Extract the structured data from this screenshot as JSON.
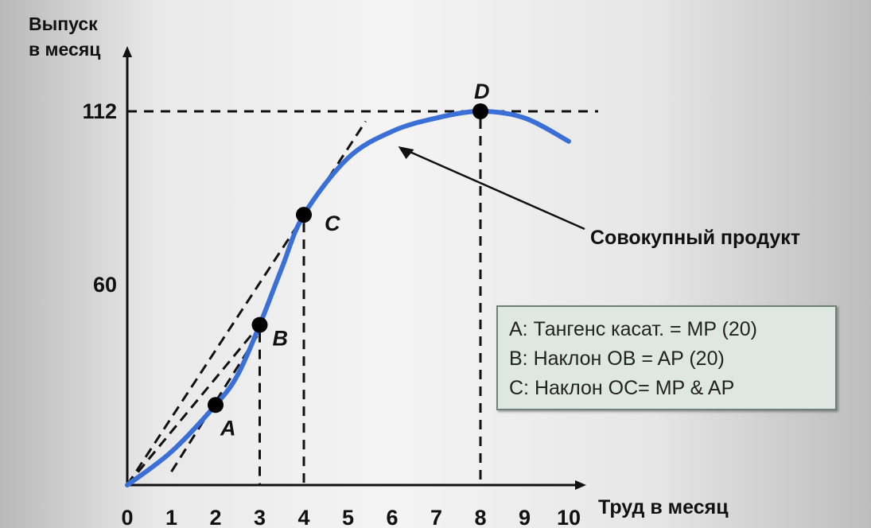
{
  "chart_data": {
    "type": "line",
    "ylabel_line1": "Выпуск",
    "ylabel_line2": "в месяц",
    "xlabel": "Труд в месяц",
    "x_ticks": [
      "0",
      "1",
      "2",
      "3",
      "4",
      "5",
      "6",
      "7",
      "8",
      "9",
      "10"
    ],
    "y_ticks": [
      {
        "value": 60,
        "label": "60"
      },
      {
        "value": 112,
        "label": "112"
      }
    ],
    "xlim": [
      0,
      10
    ],
    "ylim": [
      0,
      125
    ],
    "series": [
      {
        "color": "#3a6fd8",
        "x": [
          0,
          1,
          2,
          2.5,
          3,
          3.5,
          4,
          5,
          6,
          7,
          8,
          9,
          10
        ],
        "y": [
          0,
          10,
          24,
          33,
          48,
          65,
          81,
          98,
          106,
          110,
          112,
          110,
          103
        ]
      }
    ],
    "points": [
      {
        "label": "A",
        "x": 2,
        "y": 24
      },
      {
        "label": "B",
        "x": 3,
        "y": 48
      },
      {
        "label": "C",
        "x": 4,
        "y": 81
      },
      {
        "label": "D",
        "x": 8,
        "y": 112
      }
    ],
    "tangent_lines": [
      {
        "from": [
          0,
          0
        ],
        "to": [
          5.4,
          109
        ]
      },
      {
        "from": [
          0,
          0
        ],
        "to": [
          3.0,
          48
        ]
      },
      {
        "from": [
          1,
          4
        ],
        "to": [
          3.1,
          48
        ]
      }
    ],
    "reference_lines": [
      {
        "orientation": "horizontal",
        "y": 112
      },
      {
        "orientation": "vertical",
        "x": 3
      },
      {
        "orientation": "vertical",
        "x": 4
      },
      {
        "orientation": "vertical",
        "x": 8
      }
    ],
    "annotation": {
      "text": "Совокупный продукт",
      "arrow_to": [
        6.1,
        102
      ]
    },
    "legend_lines": [
      "A: Тангенс касат. = MP (20)",
      "B: Наклон OB = AP (20)",
      "C: Наклон OC= MP & AP"
    ]
  }
}
